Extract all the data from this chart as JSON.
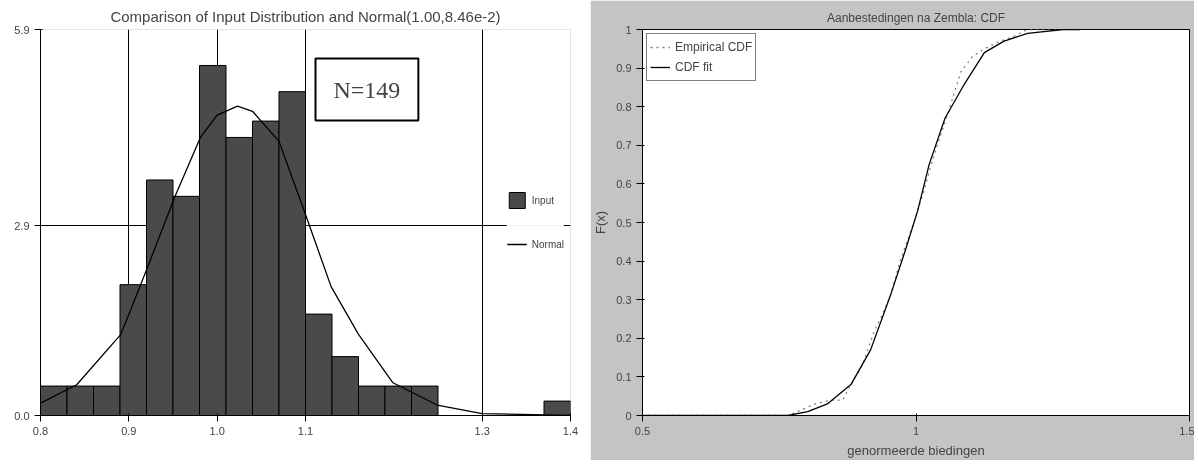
{
  "chart_data": [
    {
      "type": "histogram",
      "title": "Comparison of Input Distribution and Normal(1.00,8.46e-2)",
      "xlim": [
        0.8,
        1.4
      ],
      "ylim": [
        0,
        5.9
      ],
      "xticks": [
        {
          "value": 0.8,
          "label": "0.8"
        },
        {
          "value": 0.9,
          "label": "0.9"
        },
        {
          "value": 1.0,
          "label": "1.0"
        },
        {
          "value": 1.1,
          "label": "1.1"
        },
        {
          "value": 1.3,
          "label": "1.3"
        },
        {
          "value": 1.4,
          "label": "1.4"
        }
      ],
      "yticks": [
        {
          "value": 0,
          "label": "0.0"
        },
        {
          "value": 2.9,
          "label": "2.9"
        },
        {
          "value": 5.9,
          "label": "5.9"
        }
      ],
      "bins": [
        0.8,
        0.83,
        0.86,
        0.89,
        0.92,
        0.95,
        0.98,
        1.01,
        1.04,
        1.07,
        1.1,
        1.13,
        1.16,
        1.19,
        1.22,
        1.25,
        1.28,
        1.31,
        1.34,
        1.37,
        1.4
      ],
      "grid": true,
      "legend": "right",
      "annotations": [
        "N=149"
      ],
      "series": [
        {
          "name": "Input",
          "type": "histogram",
          "color": "#4a4a4a",
          "values": [
            0.45,
            0.45,
            0.45,
            2.0,
            3.6,
            3.35,
            5.35,
            4.25,
            4.5,
            4.95,
            1.55,
            0.9,
            0.45,
            0.45,
            0.45,
            0,
            0,
            0,
            0,
            0.22
          ]
        },
        {
          "name": "Normal",
          "type": "line",
          "color": "#000000",
          "x": [
            0.8,
            0.841,
            0.891,
            0.921,
            0.952,
            0.981,
            1.0,
            1.023,
            1.04,
            1.07,
            1.099,
            1.129,
            1.16,
            1.199,
            1.249,
            1.3,
            1.4
          ],
          "values": [
            0.19,
            0.47,
            1.24,
            2.26,
            3.34,
            4.25,
            4.59,
            4.73,
            4.65,
            4.19,
            3.11,
            1.97,
            1.24,
            0.5,
            0.16,
            0.03,
            0.0
          ]
        }
      ]
    },
    {
      "type": "line",
      "title": "Aanbestedingen na Zembla: CDF",
      "xlabel": "genormeerde biedingen",
      "ylabel": "F(x)",
      "xlim": [
        0.5,
        1.5
      ],
      "ylim": [
        0,
        1
      ],
      "xticks": [
        0.5,
        1,
        1.5
      ],
      "yticks": [
        0,
        0.1,
        0.2,
        0.3,
        0.4,
        0.5,
        0.6,
        0.7,
        0.8,
        0.9,
        1
      ],
      "legend": "top left",
      "series": [
        {
          "name": "Empirical CDF",
          "color": "#808080",
          "line_style": "dotted",
          "x": [
            0.5,
            0.766,
            0.816,
            0.845,
            0.866,
            0.877,
            0.902,
            0.924,
            0.938,
            0.953,
            0.971,
            0.981,
            0.996,
            1.014,
            1.032,
            1.06,
            1.082,
            1.103,
            1.125,
            1.154,
            1.175,
            1.204,
            1.297
          ],
          "values": [
            0,
            0,
            0.03,
            0.04,
            0.04,
            0.07,
            0.13,
            0.22,
            0.26,
            0.31,
            0.4,
            0.44,
            0.5,
            0.58,
            0.67,
            0.79,
            0.89,
            0.93,
            0.95,
            0.97,
            0.98,
            1.0,
            1.0
          ]
        },
        {
          "name": "CDF fit",
          "color": "#000000",
          "line_style": "solid",
          "x": [
            0.5,
            0.766,
            0.802,
            0.838,
            0.881,
            0.917,
            0.953,
            0.981,
            1.003,
            1.024,
            1.053,
            1.089,
            1.125,
            1.161,
            1.204,
            1.269,
            1.3
          ],
          "values": [
            0,
            0,
            0.01,
            0.03,
            0.08,
            0.17,
            0.31,
            0.43,
            0.53,
            0.65,
            0.77,
            0.86,
            0.94,
            0.97,
            0.99,
            1.0,
            1.0
          ]
        }
      ]
    }
  ]
}
